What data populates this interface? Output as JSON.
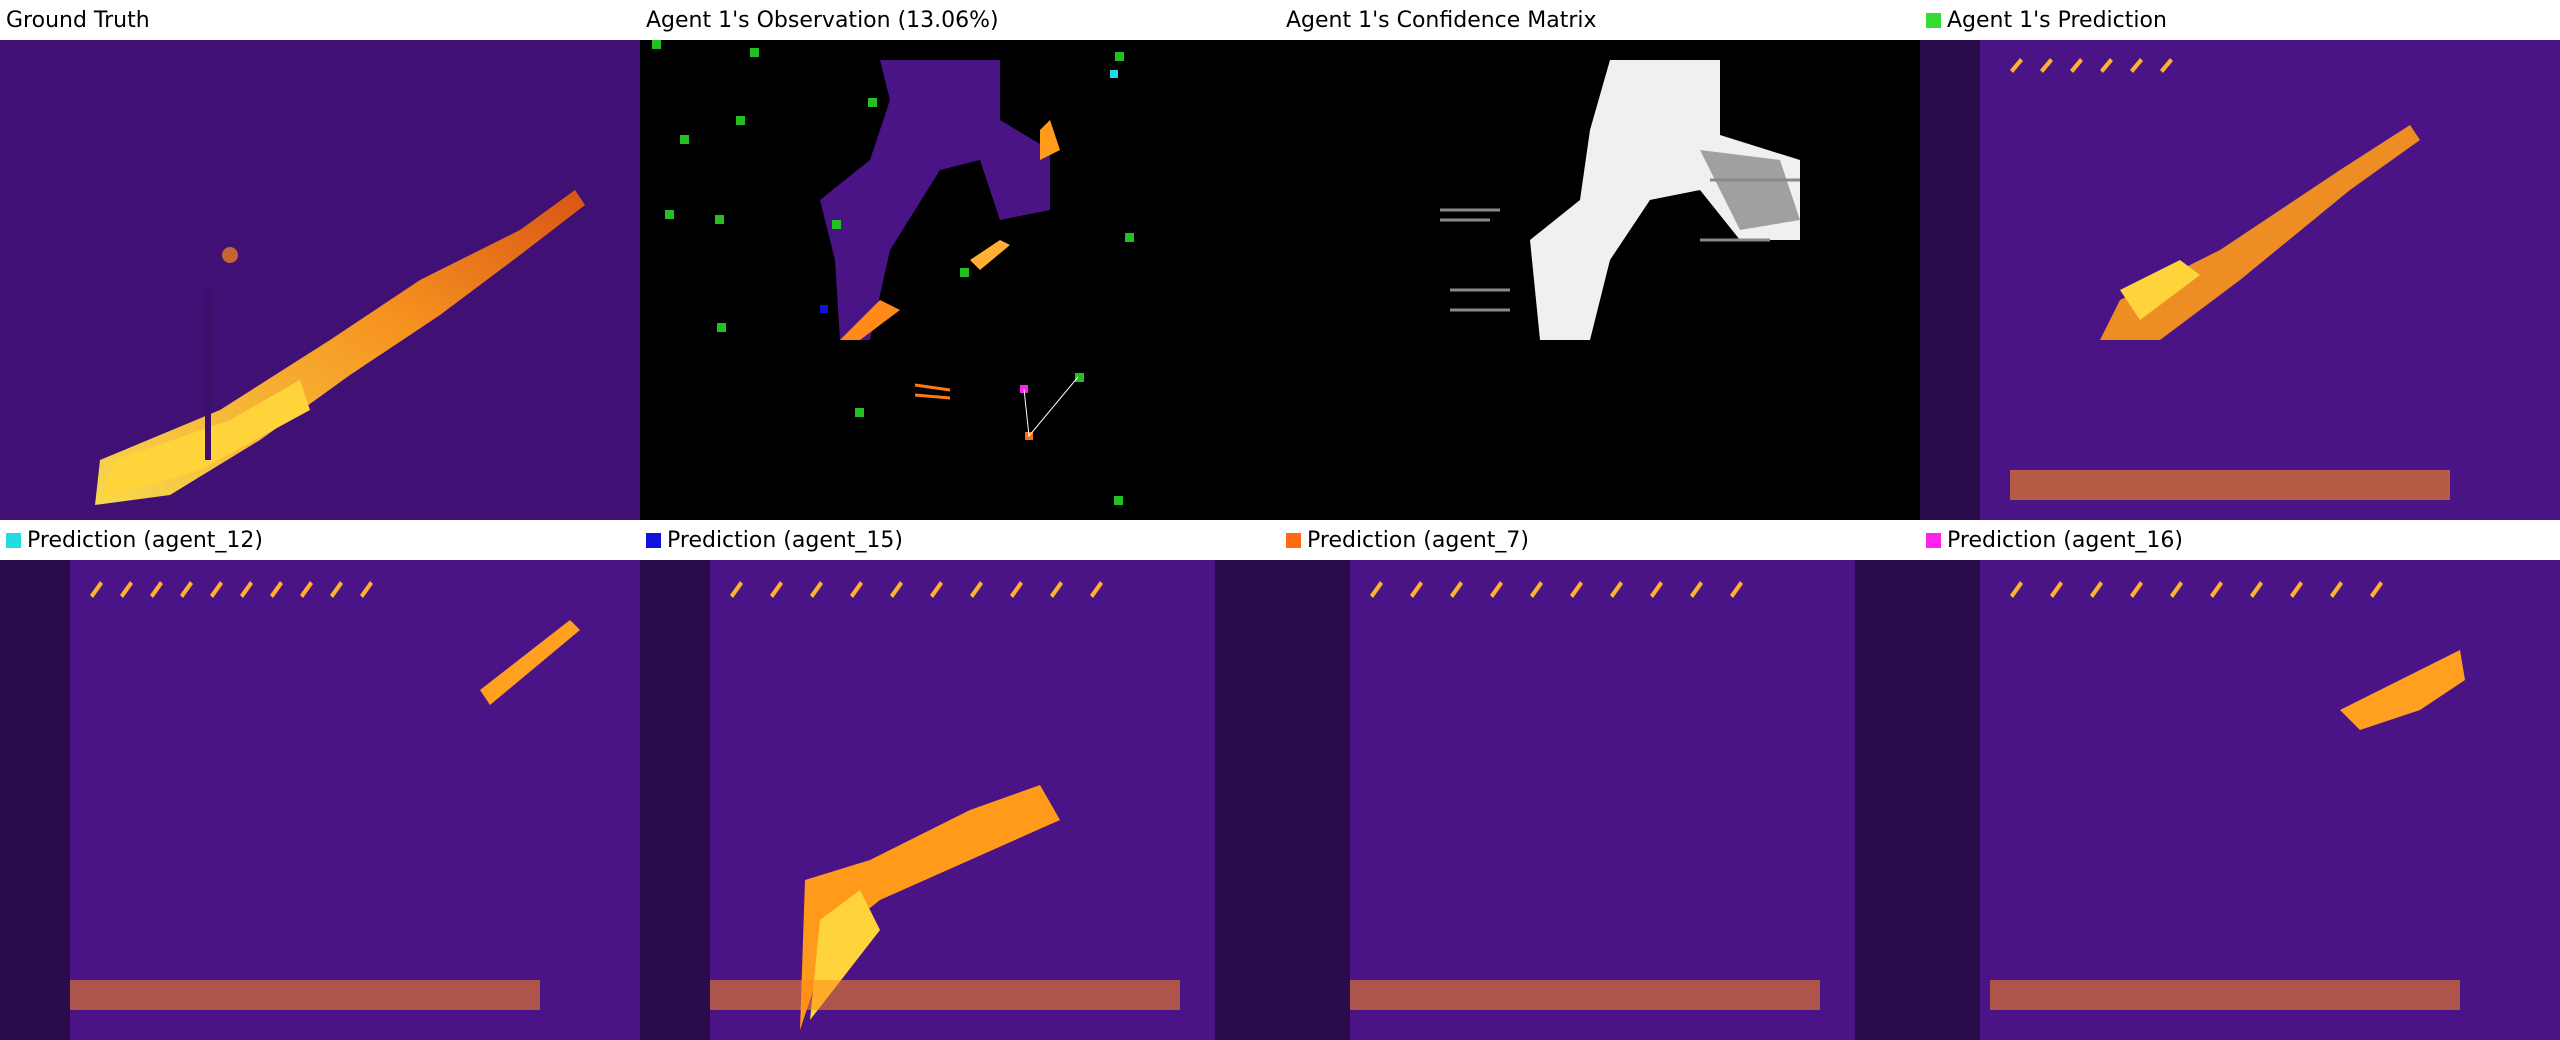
{
  "panels": [
    {
      "id": "gt",
      "title": "Ground Truth",
      "swatch": null,
      "type": "thermal_gt"
    },
    {
      "id": "obs",
      "title": "Agent 1's Observation (13.06%)",
      "swatch": null,
      "type": "observation"
    },
    {
      "id": "conf",
      "title": "Agent 1's Confidence Matrix",
      "swatch": null,
      "type": "confidence"
    },
    {
      "id": "pred1",
      "title": "Agent 1's Prediction",
      "swatch": "#33dd33",
      "type": "prediction"
    },
    {
      "id": "a12",
      "title": "Prediction (agent_12)",
      "swatch": "#22dddd",
      "type": "prediction"
    },
    {
      "id": "a15",
      "title": "Prediction (agent_15)",
      "swatch": "#1111dd",
      "type": "prediction"
    },
    {
      "id": "a7",
      "title": "Prediction (agent_7)",
      "swatch": "#ff6a10",
      "type": "prediction"
    },
    {
      "id": "a16",
      "title": "Prediction (agent_16)",
      "swatch": "#ff22ee",
      "type": "prediction"
    }
  ],
  "colors": {
    "background_dark": "#3a0c62",
    "background_mid": "#4b1488",
    "hot_low": "#e05810",
    "hot_mid": "#ff9a1a",
    "hot_high": "#ffe34d",
    "agent_marker": "#22c022",
    "unobserved": "#000000",
    "confidence_high": "#ffffff",
    "confidence_low": "#6a6a6a"
  }
}
